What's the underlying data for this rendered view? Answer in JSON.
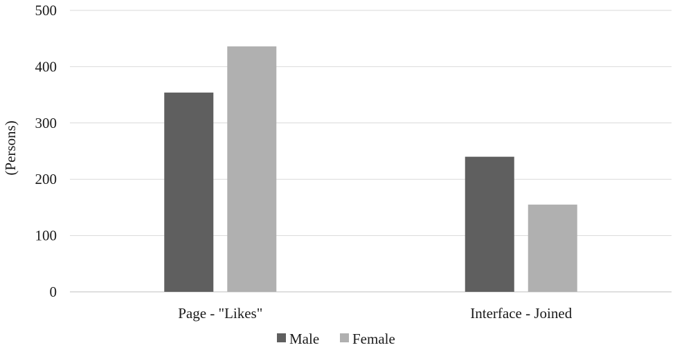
{
  "chart_data": {
    "type": "bar",
    "title": "",
    "xlabel": "",
    "ylabel": "(Persons)",
    "ylim": [
      0,
      500
    ],
    "yticks": [
      0,
      100,
      200,
      300,
      400,
      500
    ],
    "categories": [
      "Page - \"Likes\"",
      "Interface - Joined"
    ],
    "series": [
      {
        "name": "Male",
        "values": [
          354,
          240
        ],
        "color": "#5f5f5f"
      },
      {
        "name": "Female",
        "values": [
          436,
          155
        ],
        "color": "#b0b0b0"
      }
    ],
    "grid": true,
    "legend_position": "bottom"
  }
}
